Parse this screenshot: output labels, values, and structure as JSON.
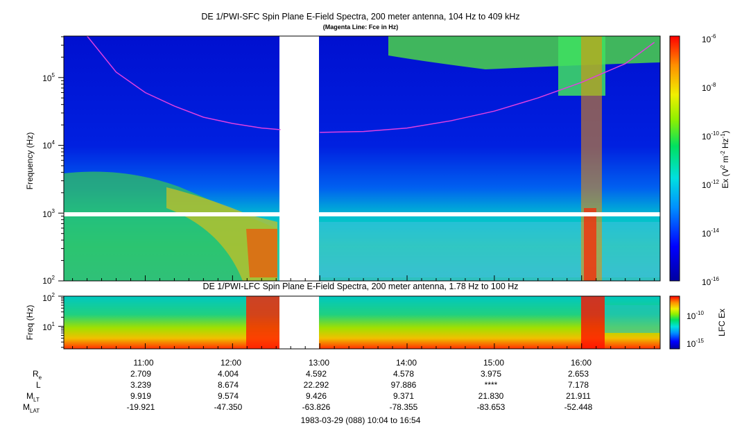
{
  "chart_data": [
    {
      "type": "heatmap",
      "title": "DE 1/PWI-SFC  Spin Plane E-Field Spectra, 200 meter antenna, 104 Hz to 409 kHz",
      "subtitle": "(Magenta Line: Fce in Hz)",
      "ylabel": "Frequency (Hz)",
      "yscale": "log",
      "ylim": [
        100,
        409000
      ],
      "y_ticks": [
        100,
        1000,
        10000,
        100000
      ],
      "y_tick_labels": [
        {
          "base": "10",
          "exp": "2"
        },
        {
          "base": "10",
          "exp": "3"
        },
        {
          "base": "10",
          "exp": "4"
        },
        {
          "base": "10",
          "exp": "5"
        }
      ],
      "xlim": [
        "10:04",
        "16:54"
      ],
      "x_ticks": [
        "11:00",
        "12:00",
        "13:00",
        "14:00",
        "15:00",
        "16:00"
      ],
      "data_gap": [
        "12:33",
        "13:00"
      ],
      "colorbar": {
        "label": "Ex (V² m⁻² Hz⁻¹)",
        "label_base": "Ex (V",
        "label_sup1": "2",
        "label_mid": " m",
        "label_sup2": "-2",
        "label_end": " Hz",
        "label_sup3": "-1",
        "label_close": ")",
        "scale": "log",
        "range": [
          1e-16,
          1e-06
        ],
        "tick_labels": [
          {
            "base": "10",
            "exp": "-6"
          },
          {
            "base": "10",
            "exp": "-8"
          },
          {
            "base": "10",
            "exp": "-10"
          },
          {
            "base": "10",
            "exp": "-12"
          },
          {
            "base": "10",
            "exp": "-14"
          },
          {
            "base": "10",
            "exp": "-16"
          }
        ]
      },
      "fce_line": {
        "name": "Fce",
        "color": "#e040e0",
        "times": [
          "10:20",
          "10:40",
          "11:00",
          "11:20",
          "11:40",
          "12:00",
          "12:20",
          "12:33",
          "13:00",
          "13:30",
          "14:00",
          "14:30",
          "15:00",
          "15:30",
          "16:00",
          "16:30",
          "16:50"
        ],
        "values": [
          409000,
          120000,
          60000,
          38000,
          26000,
          21000,
          18000,
          17000,
          15500,
          16000,
          18000,
          23000,
          32000,
          50000,
          85000,
          160000,
          330000
        ]
      }
    },
    {
      "type": "heatmap",
      "title": "DE 1/PWI-LFC  Spin Plane E-Field Spectra, 200 meter antenna, 1.78 Hz to 100 Hz",
      "ylabel": "Freq (Hz)",
      "yscale": "log",
      "ylim": [
        1.78,
        100
      ],
      "y_ticks": [
        10,
        100
      ],
      "y_tick_labels": [
        {
          "base": "10",
          "exp": "1"
        },
        {
          "base": "10",
          "exp": "2"
        }
      ],
      "colorbar": {
        "label": "LFC Ex",
        "tick_labels": [
          {
            "base": "10",
            "exp": "-10"
          },
          {
            "base": "10",
            "exp": "-15"
          }
        ]
      }
    }
  ],
  "ephemeris": {
    "labels": [
      {
        "main": "R",
        "sub": "e"
      },
      {
        "main": "L",
        "sub": ""
      },
      {
        "main": "M",
        "sub": "LT"
      },
      {
        "main": "M",
        "sub": "LAT"
      }
    ],
    "times": [
      "11:00",
      "12:00",
      "13:00",
      "14:00",
      "15:00",
      "16:00"
    ],
    "rows": [
      [
        "2.709",
        "4.004",
        "4.592",
        "4.578",
        "3.975",
        "2.653"
      ],
      [
        "3.239",
        "8.674",
        "22.292",
        "97.886",
        "****",
        "7.178"
      ],
      [
        "9.919",
        "9.574",
        "9.426",
        "9.371",
        "21.830",
        "21.911"
      ],
      [
        "-19.921",
        "-47.350",
        "-63.826",
        "-78.355",
        "-83.653",
        "-52.448"
      ]
    ]
  },
  "footer": "1983-03-29 (088) 10:04 to 16:54"
}
